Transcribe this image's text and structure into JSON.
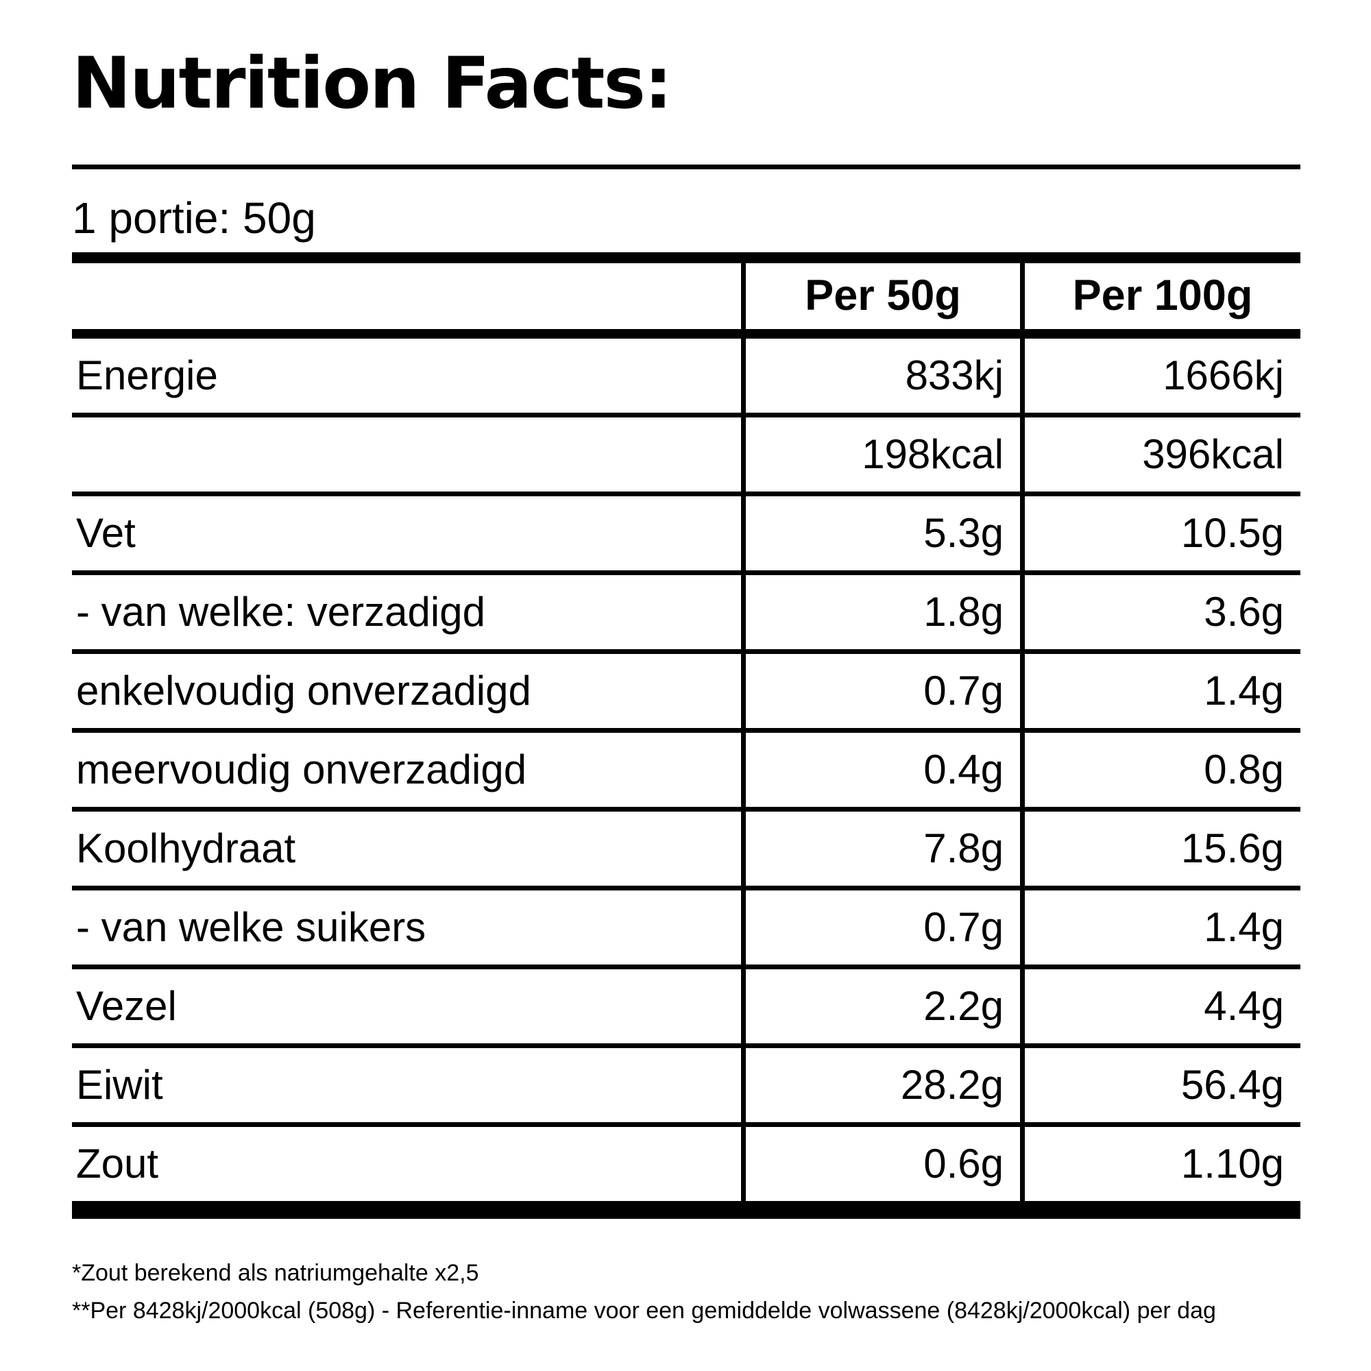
{
  "title": "Nutrition Facts:",
  "serving_size": "1 portie: 50g",
  "table": {
    "col_headers": [
      "Per 50g",
      "Per 100g"
    ],
    "rows": [
      {
        "label": "Energie",
        "per50": "833kj",
        "per100": "1666kj"
      },
      {
        "label": "",
        "per50": "198kcal",
        "per100": "396kcal"
      },
      {
        "label": "Vet",
        "per50": "5.3g",
        "per100": "10.5g"
      },
      {
        "label": "- van welke: verzadigd",
        "per50": "1.8g",
        "per100": "3.6g"
      },
      {
        "label": "enkelvoudig onverzadigd",
        "per50": "0.7g",
        "per100": "1.4g"
      },
      {
        "label": "meervoudig onverzadigd",
        "per50": "0.4g",
        "per100": "0.8g"
      },
      {
        "label": "Koolhydraat",
        "per50": "7.8g",
        "per100": "15.6g"
      },
      {
        "label": "- van welke suikers",
        "per50": "0.7g",
        "per100": "1.4g"
      },
      {
        "label": "Vezel",
        "per50": "2.2g",
        "per100": "4.4g"
      },
      {
        "label": "Eiwit",
        "per50": "28.2g",
        "per100": "56.4g"
      },
      {
        "label": "Zout",
        "per50": "0.6g",
        "per100": "1.10g"
      }
    ]
  },
  "footnotes": [
    "*Zout berekend als natriumgehalte x2,5",
    "**Per 8428kj/2000kcal (508g) - Referentie-inname voor een gemiddelde volwassene (8428kj/2000kcal) per dag"
  ],
  "colors": {
    "text": "#000000",
    "background": "#ffffff"
  }
}
